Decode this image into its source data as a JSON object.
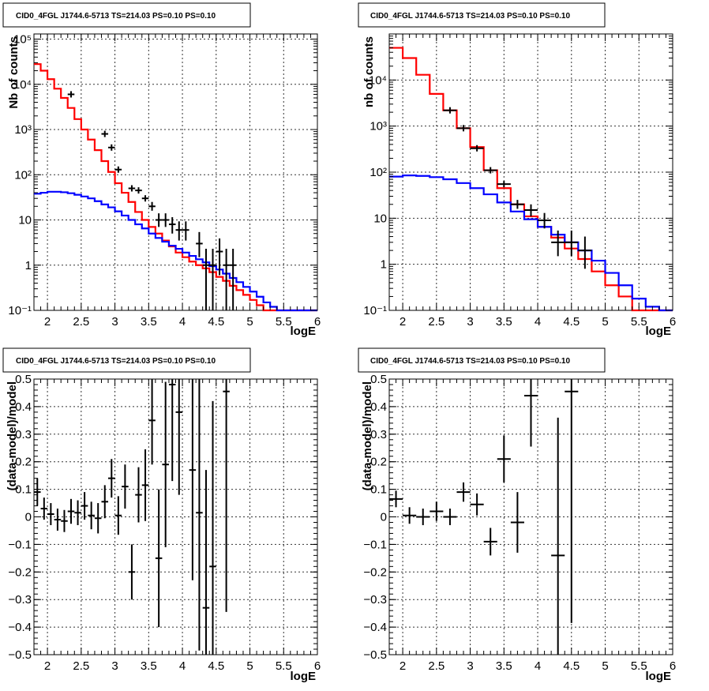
{
  "chart_data": [
    {
      "type": "line",
      "title": "CID0_4FGL J1744.6-5713 TS=214.03 PS=0.10 PS=0.10",
      "xlabel": "logE",
      "ylabel": "Nb of counts",
      "xlim": [
        1.8,
        6.0
      ],
      "ylim": [
        0.1,
        130000
      ],
      "log_y": true,
      "grid": true,
      "x_ticks": [
        2,
        2.5,
        3,
        3.5,
        4,
        4.5,
        5,
        5.5,
        6
      ],
      "x_tick_labels": [
        "2",
        "2.5",
        "3",
        "3.5",
        "4",
        "4.5",
        "5",
        "5.5",
        "6"
      ],
      "y_ticks": [
        0.1,
        1,
        10,
        100,
        1000,
        10000,
        100000
      ],
      "y_tick_labels": [
        "10⁻¹",
        "1",
        "10",
        "10²",
        "10³",
        "10⁴",
        "10⁵"
      ],
      "bin_width": 0.1,
      "series": [
        {
          "color": "#ff0000",
          "style": "step",
          "x": [
            1.8,
            1.9,
            2.0,
            2.1,
            2.2,
            2.3,
            2.4,
            2.5,
            2.6,
            2.7,
            2.8,
            2.9,
            3.0,
            3.1,
            3.2,
            3.3,
            3.4,
            3.5,
            3.6,
            3.7,
            3.8,
            3.9,
            4.0,
            4.1,
            4.2,
            4.3,
            4.4,
            4.5,
            4.6,
            4.7,
            4.8,
            4.9,
            5.0,
            5.1,
            5.2,
            5.3,
            5.4,
            5.5,
            5.6,
            5.7,
            5.8,
            5.9
          ],
          "values": [
            28000,
            20000,
            13000,
            8000,
            5000,
            3000,
            1700,
            1000,
            600,
            350,
            200,
            115,
            65,
            40,
            25,
            15,
            10,
            7,
            5,
            3.5,
            2.6,
            1.9,
            1.5,
            1.2,
            1.0,
            0.85,
            0.7,
            0.55,
            0.45,
            0.35,
            0.28,
            0.22,
            0.17,
            0.13,
            0.1,
            0.1,
            0.1,
            0.1,
            0.1,
            0.1,
            0.1,
            0.1
          ]
        },
        {
          "color": "#0000ff",
          "style": "step",
          "x": [
            1.8,
            1.9,
            2.0,
            2.1,
            2.2,
            2.3,
            2.4,
            2.5,
            2.6,
            2.7,
            2.8,
            2.9,
            3.0,
            3.1,
            3.2,
            3.3,
            3.4,
            3.5,
            3.6,
            3.7,
            3.8,
            3.9,
            4.0,
            4.1,
            4.2,
            4.3,
            4.4,
            4.5,
            4.6,
            4.7,
            4.8,
            4.9,
            5.0,
            5.1,
            5.2,
            5.3,
            5.4,
            5.5,
            5.6,
            5.7,
            5.8,
            5.9
          ],
          "values": [
            38,
            40,
            42,
            42,
            41,
            39,
            36,
            33,
            30,
            26,
            22,
            19,
            15.5,
            12.5,
            10,
            8,
            6.5,
            5,
            4,
            3.3,
            2.7,
            2.3,
            1.9,
            1.6,
            1.35,
            1.15,
            0.95,
            0.8,
            0.65,
            0.52,
            0.42,
            0.33,
            0.26,
            0.2,
            0.15,
            0.12,
            0.1,
            0.1,
            0.1,
            0.1,
            0.1,
            0.1
          ]
        },
        {
          "color": "#000000",
          "style": "points",
          "x": [
            2.35,
            2.85,
            2.95,
            3.05,
            3.25,
            3.35,
            3.45,
            3.55,
            3.65,
            3.75,
            3.85,
            3.95,
            4.05,
            4.25,
            4.35,
            4.45,
            4.55,
            4.65,
            4.75
          ],
          "values": [
            6000,
            800,
            400,
            130,
            50,
            45,
            30,
            20,
            10,
            10,
            8,
            6,
            6,
            3,
            1,
            1,
            2,
            1,
            1
          ],
          "err_low": [
            0,
            0,
            0,
            0,
            0,
            0,
            0,
            4,
            3,
            3,
            3,
            2.5,
            2.5,
            1.5,
            0.9,
            0.9,
            1.4,
            0.9,
            0.9
          ],
          "err_high": [
            0,
            0,
            0,
            0,
            0,
            0,
            0,
            5,
            4,
            4,
            3.5,
            3.3,
            3.3,
            2.4,
            1.3,
            1.3,
            1.9,
            1.3,
            1.3
          ]
        }
      ]
    },
    {
      "type": "line",
      "title": "CID0_4FGL J1744.6-5713 TS=214.03 PS=0.10 PS=0.10",
      "xlabel": "logE",
      "ylabel": "nb of counts",
      "xlim": [
        1.8,
        6.0
      ],
      "ylim": [
        0.1,
        100000
      ],
      "log_y": true,
      "grid": true,
      "x_ticks": [
        2,
        2.5,
        3,
        3.5,
        4,
        4.5,
        5,
        5.5,
        6
      ],
      "x_tick_labels": [
        "2",
        "2.5",
        "3",
        "3.5",
        "4",
        "4.5",
        "5",
        "5.5",
        "6"
      ],
      "y_ticks": [
        0.1,
        1,
        10,
        100,
        1000,
        10000
      ],
      "y_tick_labels": [
        "10⁻¹",
        "1",
        "10",
        "10²",
        "10³",
        "10⁴"
      ],
      "bin_width": 0.2,
      "series": [
        {
          "color": "#ff0000",
          "style": "step",
          "x": [
            1.8,
            2.0,
            2.2,
            2.4,
            2.6,
            2.8,
            3.0,
            3.2,
            3.4,
            3.6,
            3.8,
            4.0,
            4.2,
            4.4,
            4.6,
            4.8,
            5.0,
            5.2,
            5.4,
            5.6,
            5.8
          ],
          "values": [
            50000,
            30000,
            13000,
            5000,
            2200,
            900,
            350,
            110,
            45,
            20,
            11,
            6.5,
            3.8,
            2.2,
            1.3,
            0.7,
            0.35,
            0.2,
            0.1,
            0.1,
            0.1
          ]
        },
        {
          "color": "#0000ff",
          "style": "step",
          "x": [
            1.8,
            2.0,
            2.2,
            2.4,
            2.6,
            2.8,
            3.0,
            3.2,
            3.4,
            3.6,
            3.8,
            4.0,
            4.2,
            4.4,
            4.6,
            4.8,
            5.0,
            5.2,
            5.4,
            5.6,
            5.8
          ],
          "values": [
            80,
            85,
            83,
            78,
            70,
            58,
            45,
            33,
            22,
            14,
            9.5,
            6.5,
            4.4,
            3.0,
            2.0,
            1.2,
            0.65,
            0.35,
            0.18,
            0.12,
            0.1
          ]
        },
        {
          "color": "#000000",
          "style": "points",
          "x": [
            2.7,
            2.9,
            3.1,
            3.3,
            3.5,
            3.7,
            3.9,
            4.1,
            4.3,
            4.5,
            4.7
          ],
          "values": [
            2200,
            900,
            330,
            110,
            55,
            20,
            15,
            9,
            3,
            3,
            2
          ],
          "err_low": [
            0,
            0,
            0,
            0,
            0,
            4,
            4,
            3,
            1.5,
            1.5,
            1.2
          ],
          "err_high": [
            0,
            0,
            0,
            0,
            0,
            5,
            5,
            4,
            2.4,
            2.4,
            2
          ]
        }
      ]
    },
    {
      "type": "scatter",
      "title": "CID0_4FGL J1744.6-5713 TS=214.03 PS=0.10 PS=0.10",
      "xlabel": "logE",
      "ylabel": "(data-model)/model",
      "xlim": [
        1.8,
        6.0
      ],
      "ylim": [
        -0.5,
        0.5
      ],
      "grid": true,
      "x_ticks": [
        2,
        2.5,
        3,
        3.5,
        4,
        4.5,
        5,
        5.5,
        6
      ],
      "x_tick_labels": [
        "2",
        "2.5",
        "3",
        "3.5",
        "4",
        "4.5",
        "5",
        "5.5",
        "6"
      ],
      "y_ticks": [
        -0.5,
        -0.4,
        -0.3,
        -0.2,
        -0.1,
        0,
        0.1,
        0.2,
        0.3,
        0.4,
        0.5
      ],
      "y_tick_labels": [
        "−0.5",
        "−0.4",
        "−0.3",
        "−0.2",
        "−0.1",
        "0",
        "0.1",
        "0.2",
        "0.3",
        "0.4",
        "0.5"
      ],
      "bin_width": 0.1,
      "series": [
        {
          "color": "#000000",
          "x": [
            1.85,
            1.95,
            2.05,
            2.15,
            2.25,
            2.35,
            2.45,
            2.55,
            2.65,
            2.75,
            2.85,
            2.95,
            3.05,
            3.15,
            3.25,
            3.35,
            3.45,
            3.55,
            3.65,
            3.75,
            3.85,
            3.95,
            4.15,
            4.25,
            4.35,
            4.45,
            4.65
          ],
          "values": [
            0.09,
            0.03,
            0.01,
            -0.01,
            -0.015,
            0.02,
            0.015,
            0.04,
            0.005,
            -0.005,
            0.055,
            0.14,
            0.005,
            0.11,
            -0.2,
            0.08,
            0.115,
            0.35,
            -0.15,
            0.19,
            0.48,
            0.38,
            0.17,
            0.015,
            -0.33,
            -0.18,
            0.455
          ],
          "err": [
            0.05,
            0.04,
            0.04,
            0.04,
            0.04,
            0.045,
            0.045,
            0.05,
            0.05,
            0.055,
            0.06,
            0.07,
            0.07,
            0.08,
            0.1,
            0.1,
            0.13,
            0.16,
            0.25,
            0.3,
            0.35,
            0.3,
            0.4,
            0.5,
            0.5,
            0.6,
            0.8
          ]
        }
      ]
    },
    {
      "type": "scatter",
      "title": "CID0_4FGL J1744.6-5713 TS=214.03 PS=0.10 PS=0.10",
      "xlabel": "logE",
      "ylabel": "(data-model)/model",
      "xlim": [
        1.8,
        6.0
      ],
      "ylim": [
        -0.5,
        0.5
      ],
      "grid": true,
      "x_ticks": [
        2,
        2.5,
        3,
        3.5,
        4,
        4.5,
        5,
        5.5,
        6
      ],
      "x_tick_labels": [
        "2",
        "2.5",
        "3",
        "3.5",
        "4",
        "4.5",
        "5",
        "5.5",
        "6"
      ],
      "y_ticks": [
        -0.5,
        -0.4,
        -0.3,
        -0.2,
        -0.1,
        0,
        0.1,
        0.2,
        0.3,
        0.4,
        0.5
      ],
      "y_tick_labels": [
        "−0.5",
        "−0.4",
        "−0.3",
        "−0.2",
        "−0.1",
        "0",
        "0.1",
        "0.2",
        "0.3",
        "0.4",
        "0.5"
      ],
      "bin_width": 0.2,
      "series": [
        {
          "color": "#000000",
          "x": [
            1.9,
            2.1,
            2.3,
            2.5,
            2.7,
            2.9,
            3.1,
            3.3,
            3.5,
            3.7,
            3.9,
            4.3,
            4.5
          ],
          "values": [
            0.065,
            0.005,
            0.0,
            0.02,
            0.0,
            0.09,
            0.045,
            -0.09,
            0.21,
            -0.02,
            0.44,
            -0.14,
            0.455
          ],
          "err": [
            0.03,
            0.03,
            0.03,
            0.035,
            0.03,
            0.035,
            0.04,
            0.05,
            0.085,
            0.11,
            0.185,
            0.5,
            0.84
          ]
        }
      ]
    }
  ]
}
